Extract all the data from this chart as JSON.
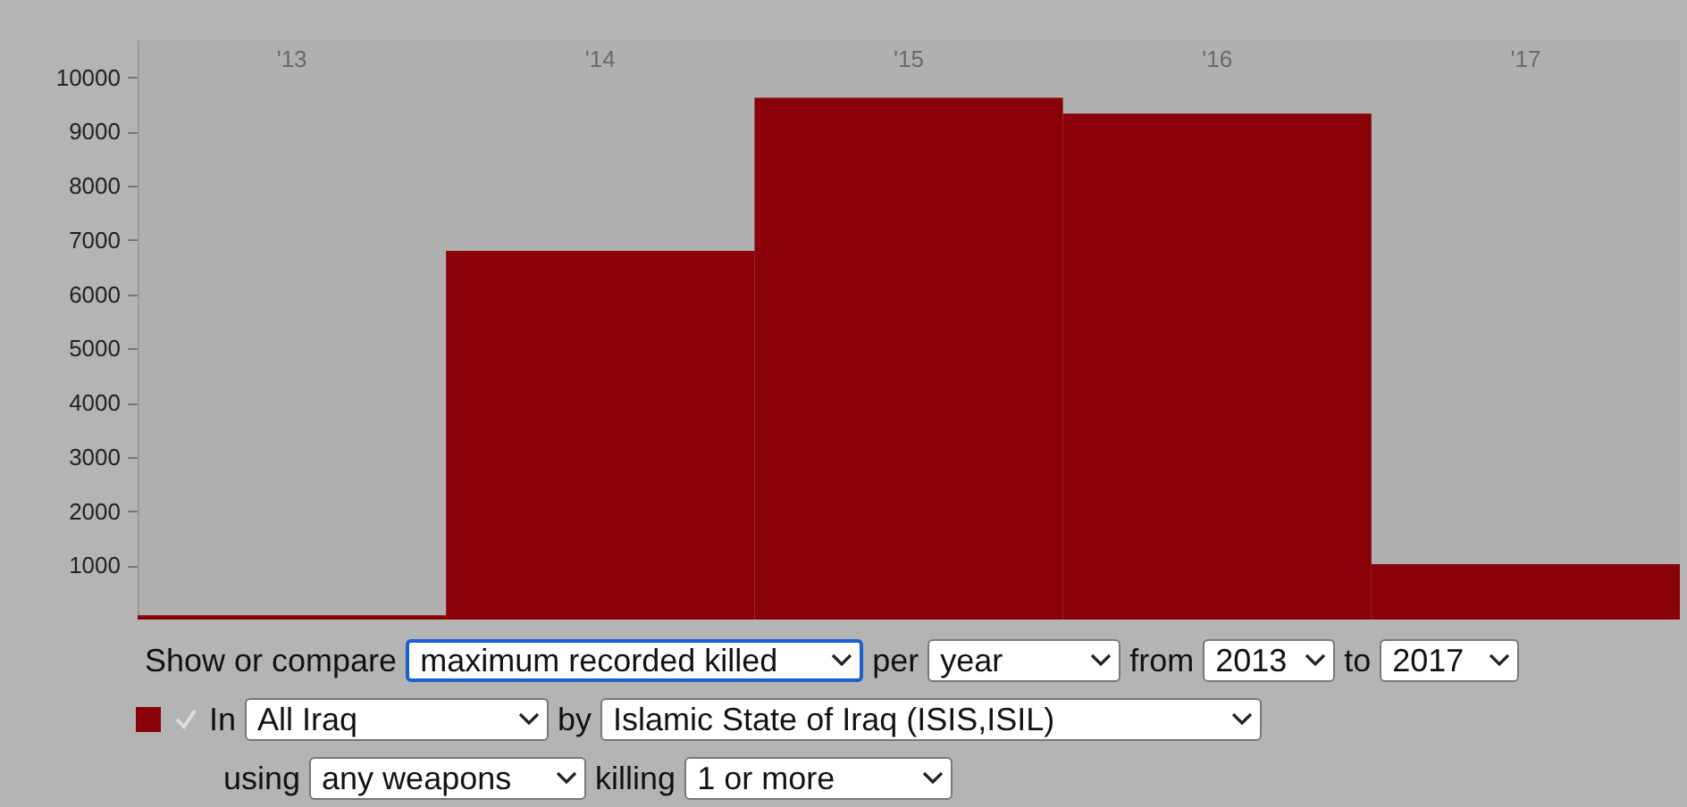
{
  "chart_data": {
    "type": "bar",
    "categories": [
      "'13",
      "'14",
      "'15",
      "'16",
      "'17"
    ],
    "values": [
      80,
      6800,
      9620,
      9330,
      1020
    ],
    "color": "#8a0009",
    "ylim": [
      0,
      10700
    ],
    "yticks": [
      1000,
      2000,
      3000,
      4000,
      5000,
      6000,
      7000,
      8000,
      9000,
      10000
    ],
    "grid": false,
    "annotations": [
      "Show or compare",
      "maximum recorded killed",
      "per",
      "year",
      "from",
      "2013",
      "to",
      "2017",
      "In",
      "All Iraq",
      "by",
      "Islamic State of Iraq (ISIS,ISIL)",
      "using",
      "any weapons",
      "killing",
      "1 or more"
    ]
  }
}
